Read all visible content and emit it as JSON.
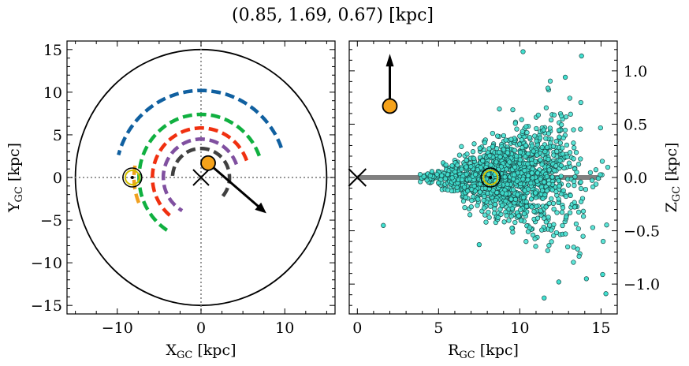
{
  "title": "(0.85, 1.69, 0.67) [kpc]",
  "chart_data": [
    {
      "type": "scatter",
      "panel": "left",
      "xlabel": "X_GC [kpc]",
      "ylabel": "Y_GC [kpc]",
      "xlim": [
        -16,
        16
      ],
      "ylim": [
        -16,
        16
      ],
      "xticks": [
        -10,
        0,
        10
      ],
      "yticks": [
        -15,
        -10,
        -5,
        0,
        5,
        10,
        15
      ],
      "xtick_labels": [
        "−10",
        "0",
        "10"
      ],
      "ytick_labels": [
        "−15",
        "−10",
        "−5",
        "0",
        "5",
        "10",
        "15"
      ],
      "circle_radius": 15,
      "crosshair": [
        0,
        0
      ],
      "galactic_center_marker": [
        0,
        0
      ],
      "sun_marker": [
        -8.2,
        0
      ],
      "cluster_position": [
        0.85,
        1.69
      ],
      "velocity_arrow_end": [
        7.8,
        -4.2
      ],
      "arcs": [
        {
          "color": "#1060a0",
          "radius": 10.2,
          "start_deg": 20,
          "end_deg": 165
        },
        {
          "color": "#10b040",
          "radius": 7.4,
          "start_deg": 20,
          "end_deg": 240
        },
        {
          "color": "#f0a020",
          "radius": 8.0,
          "start_deg": 170,
          "end_deg": 202
        },
        {
          "color": "#f03010",
          "radius": 5.8,
          "start_deg": 20,
          "end_deg": 235
        },
        {
          "color": "#8050a0",
          "radius": 4.5,
          "start_deg": 20,
          "end_deg": 240
        },
        {
          "color": "#404040",
          "radius": 3.4,
          "start_deg": -40,
          "end_deg": 180
        }
      ]
    },
    {
      "type": "scatter",
      "panel": "right",
      "xlabel": "R_GC [kpc]",
      "ylabel": "Z_GC [kpc]",
      "xlim": [
        -0.5,
        16
      ],
      "ylim": [
        -1.28,
        1.28
      ],
      "xticks": [
        0,
        5,
        10,
        15
      ],
      "yticks": [
        -1.0,
        -0.5,
        0.0,
        0.5,
        1.0
      ],
      "xtick_labels": [
        "0",
        "5",
        "10",
        "15"
      ],
      "ytick_labels": [
        "−1.0",
        "−0.5",
        "0.0",
        "0.5",
        "1.0"
      ],
      "disk_line": {
        "x": [
          0,
          15
        ],
        "z": 0,
        "color": "#808080"
      },
      "galactic_center_marker": [
        0,
        0
      ],
      "sun_marker": [
        8.2,
        0
      ],
      "cluster_position": [
        2.0,
        0.67
      ],
      "velocity_arrow_end": [
        2.0,
        1.16
      ],
      "point_color": "#40e0d0",
      "n_points": 1500
    }
  ]
}
